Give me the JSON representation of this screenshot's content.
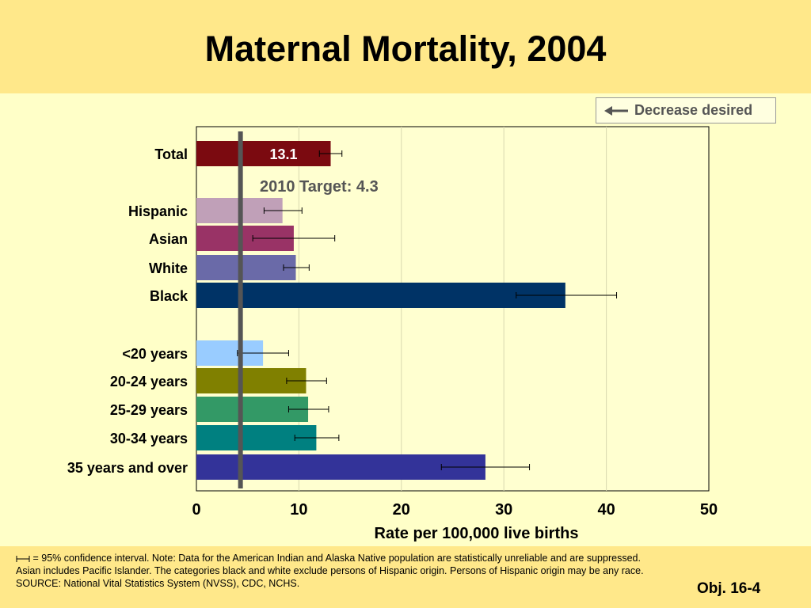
{
  "title": "Maternal Mortality, 2004",
  "legend": {
    "label": "Decrease desired"
  },
  "chart_data": {
    "type": "bar",
    "orientation": "horizontal",
    "xlabel": "Rate per 100,000 live births",
    "xlim": [
      0,
      50
    ],
    "xticks": [
      0,
      10,
      20,
      30,
      40,
      50
    ],
    "grid": true,
    "target": {
      "label": "2010 Target: 4.3",
      "value": 4.3
    },
    "bars": [
      {
        "category": "Total",
        "value": 13.1,
        "ci": [
          12.0,
          14.2
        ],
        "color": "#7b0a10",
        "value_label": "13.1"
      },
      {
        "category": "Hispanic",
        "value": 8.4,
        "ci": [
          6.6,
          10.3
        ],
        "color": "#c0a0b8"
      },
      {
        "category": "Asian",
        "value": 9.5,
        "ci": [
          5.5,
          13.5
        ],
        "color": "#993366"
      },
      {
        "category": "White",
        "value": 9.7,
        "ci": [
          8.5,
          11.0
        ],
        "color": "#6a6aa8"
      },
      {
        "category": "Black",
        "value": 36.0,
        "ci": [
          31.2,
          41.0
        ],
        "color": "#003366"
      },
      {
        "category": "<20 years",
        "value": 6.5,
        "ci": [
          4.0,
          9.0
        ],
        "color": "#99ccff"
      },
      {
        "category": "20-24 years",
        "value": 10.7,
        "ci": [
          8.8,
          12.7
        ],
        "color": "#808000"
      },
      {
        "category": "25-29 years",
        "value": 10.9,
        "ci": [
          9.0,
          12.9
        ],
        "color": "#339966"
      },
      {
        "category": "30-34 years",
        "value": 11.7,
        "ci": [
          9.6,
          13.9
        ],
        "color": "#008080"
      },
      {
        "category": "35 years and over",
        "value": 28.2,
        "ci": [
          23.9,
          32.5
        ],
        "color": "#333399"
      }
    ]
  },
  "footer": {
    "note": " = 95% confidence interval. Note:  Data for the American Indian and Alaska Native population are statistically unreliable and are suppressed.  Asian includes Pacific Islander.  The categories black and white exclude persons of Hispanic origin.  Persons of Hispanic origin may be any race.",
    "source": "SOURCE: National Vital Statistics System (NVSS), CDC, NCHS.",
    "objective": "Obj. 16-4"
  }
}
